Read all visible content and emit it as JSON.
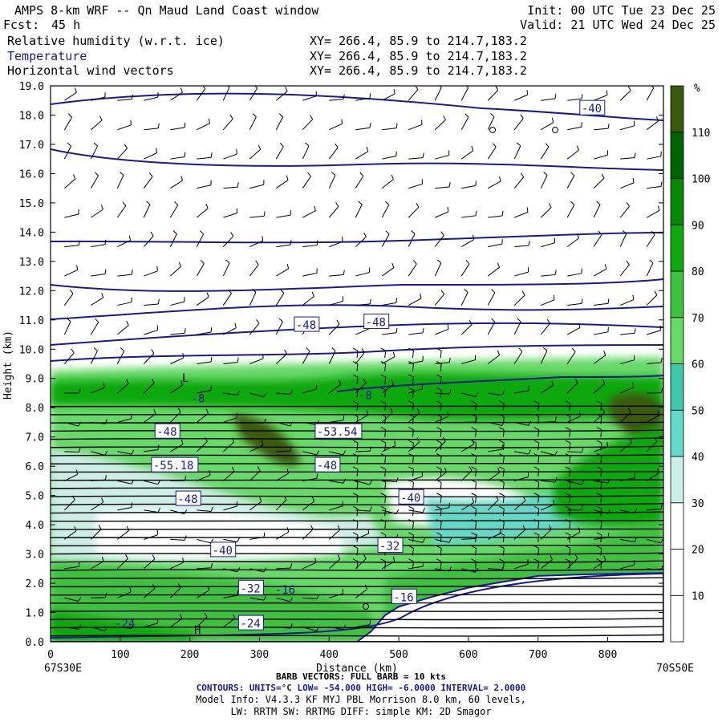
{
  "header": {
    "title": "AMPS 8-km WRF -- Qn Maud Land Coast window",
    "init": "Init: 00 UTC Tue 23 Dec 25",
    "fcst_label": "Fcst:",
    "fcst_value": "45 h",
    "valid": "Valid: 21 UTC Wed 24 Dec 25",
    "fields": [
      {
        "name": "Relative humidity (w.r.t. ice)",
        "xy": "XY= 266.4, 85.9 to 214.7,183.2"
      },
      {
        "name": "Temperature",
        "xy": "XY= 266.4, 85.9 to 214.7,183.2"
      },
      {
        "name": "Horizontal wind vectors",
        "xy": "XY= 266.4, 85.9 to 214.7,183.2"
      }
    ]
  },
  "chart_data": {
    "type": "heatmap",
    "title": "AMPS 8-km WRF -- Qn Maud Land Coast window",
    "xlabel": "Distance (km)",
    "ylabel": "Height (km)",
    "xlim": [
      0,
      880
    ],
    "ylim": [
      0,
      19
    ],
    "x_ticks": [
      "0",
      "100",
      "200",
      "300",
      "400",
      "500",
      "600",
      "700",
      "800"
    ],
    "y_ticks": [
      "0.0",
      "1.0",
      "2.0",
      "3.0",
      "4.0",
      "5.0",
      "6.0",
      "7.0",
      "8.0",
      "9.0",
      "10.0",
      "11.0",
      "12.0",
      "13.0",
      "14.0",
      "15.0",
      "16.0",
      "17.0",
      "18.0",
      "19.0"
    ],
    "x_endpoints": {
      "left": "67S30E",
      "right": "70S50E"
    },
    "colorbar": {
      "unit": "%",
      "levels": [
        0,
        10,
        20,
        30,
        40,
        50,
        60,
        70,
        80,
        90,
        100,
        110,
        120
      ],
      "tick_labels": [
        "10",
        "20",
        "30",
        "40",
        "50",
        "60",
        "70",
        "80",
        "90",
        "100",
        "110"
      ],
      "colors": [
        "#ffffff",
        "#ffffff",
        "#ffffff",
        "#cceee6",
        "#66d8c8",
        "#40c8a8",
        "#68d868",
        "#40c040",
        "#10a810",
        "#088808",
        "#006400",
        "#3a5a10",
        "#cc2200"
      ]
    },
    "temperature_contour_labels": [
      "-40",
      "-48",
      "-48",
      "-48",
      "-53.54",
      "-55.18",
      "-48",
      "-48",
      "-40",
      "-40",
      "-32",
      "-32",
      "-24",
      "-24",
      "-16",
      "-8",
      "-8",
      "-16"
    ],
    "extrema_markers": [
      "L",
      "H"
    ],
    "terrain_height_km": [
      [
        0,
        0
      ],
      [
        440,
        0
      ],
      [
        460,
        0.35
      ],
      [
        480,
        0.9
      ],
      [
        500,
        1.2
      ],
      [
        550,
        1.55
      ],
      [
        600,
        1.85
      ],
      [
        650,
        2.05
      ],
      [
        700,
        2.25
      ],
      [
        760,
        2.3
      ],
      [
        880,
        2.35
      ]
    ]
  },
  "footer": {
    "barb": "BARB VECTORS: FULL BARB = 10 kts",
    "contours": "CONTOURS: UNITS=°C LOW= -54.000 HIGH= -6.0000 INTERVAL= 2.0000",
    "model_info": "Model Info: V4.3.3 KF MYJ PBL Morrison 8.0 km, 60 levels,",
    "model_info2": "LW: RRTM SW: RRTMG DIFF: simple KM: 2D Smagor"
  },
  "colors": {
    "contour": "#1a1a8c",
    "terrain": "#ffffff"
  }
}
